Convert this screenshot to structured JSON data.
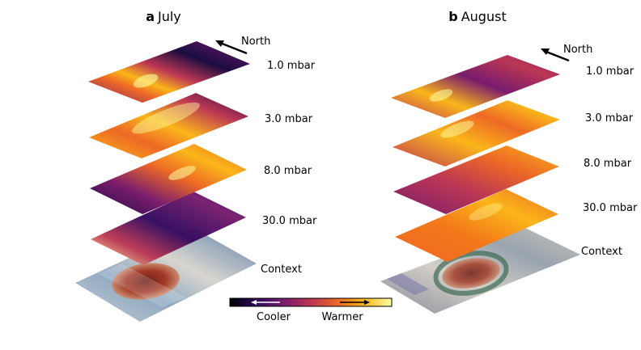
{
  "panels": [
    {
      "letter": "a",
      "title": "July",
      "north_label": "North",
      "layers": [
        {
          "label": "1.0 mbar"
        },
        {
          "label": "3.0 mbar"
        },
        {
          "label": "8.0 mbar"
        },
        {
          "label": "30.0 mbar"
        },
        {
          "label": "Context"
        }
      ]
    },
    {
      "letter": "b",
      "title": "August",
      "north_label": "North",
      "layers": [
        {
          "label": "1.0 mbar"
        },
        {
          "label": "3.0 mbar"
        },
        {
          "label": "8.0 mbar"
        },
        {
          "label": "30.0 mbar"
        },
        {
          "label": "Context"
        }
      ]
    }
  ],
  "colorbar": {
    "cool_label": "Cooler",
    "warm_label": "Warmer",
    "colormap": "inferno",
    "colors": [
      "#000004",
      "#320a5e",
      "#781c6d",
      "#bc3754",
      "#ed6925",
      "#fbb61a",
      "#fcffa4"
    ]
  },
  "context_colors": {
    "red_spot": "#9a3324",
    "bands": "#b7c0c8",
    "blue_haze": "#5b7fa8"
  }
}
